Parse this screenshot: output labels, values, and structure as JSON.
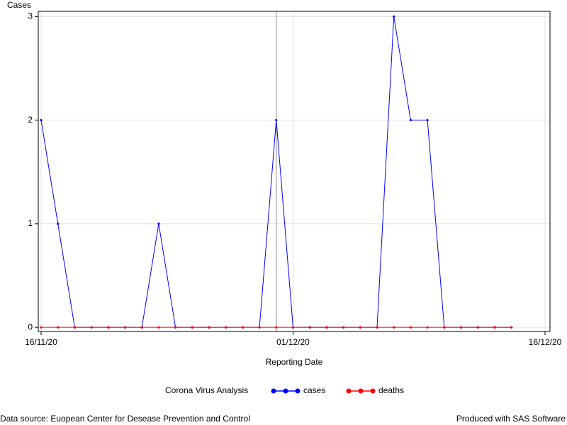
{
  "chart_data": {
    "type": "line",
    "y_label": "Cases",
    "x_label": "Reporting Date",
    "legend_title": "Corona Virus Analysis",
    "footnote_left": "Data source: Euopean Center for Desease Prevention and Control",
    "footnote_right": "Produced with SAS Software",
    "x": [
      "2020-11-16",
      "2020-11-17",
      "2020-11-18",
      "2020-11-19",
      "2020-11-20",
      "2020-11-21",
      "2020-11-22",
      "2020-11-23",
      "2020-11-24",
      "2020-11-25",
      "2020-11-26",
      "2020-11-27",
      "2020-11-28",
      "2020-11-29",
      "2020-11-30",
      "2020-12-01",
      "2020-12-02",
      "2020-12-03",
      "2020-12-04",
      "2020-12-05",
      "2020-12-06",
      "2020-12-07",
      "2020-12-08",
      "2020-12-09",
      "2020-12-10",
      "2020-12-11",
      "2020-12-12",
      "2020-12-13",
      "2020-12-14"
    ],
    "series": [
      {
        "name": "cases",
        "color": "#0000ff",
        "values": [
          2,
          1,
          0,
          0,
          0,
          0,
          0,
          1,
          0,
          0,
          0,
          0,
          0,
          0,
          2,
          0,
          0,
          0,
          0,
          0,
          0,
          3,
          2,
          2,
          0,
          0,
          0,
          0,
          0
        ]
      },
      {
        "name": "deaths",
        "color": "#ff0000",
        "values": [
          0,
          0,
          0,
          0,
          0,
          0,
          0,
          0,
          0,
          0,
          0,
          0,
          0,
          0,
          0,
          0,
          0,
          0,
          0,
          0,
          0,
          0,
          0,
          0,
          0,
          0,
          0,
          0,
          0
        ]
      }
    ],
    "xlim": [
      "2020-11-16",
      "2020-12-16"
    ],
    "xticks": [
      {
        "value": "2020-11-16",
        "label": "16/11/20"
      },
      {
        "value": "2020-12-01",
        "label": "01/12/20"
      },
      {
        "value": "2020-12-16",
        "label": "16/12/20"
      }
    ],
    "ylim": [
      -0.04,
      3.05
    ],
    "yticks": [
      0,
      1,
      2,
      3
    ],
    "grid": true,
    "reference_x": "2020-11-30",
    "legend_position": "bottom"
  }
}
